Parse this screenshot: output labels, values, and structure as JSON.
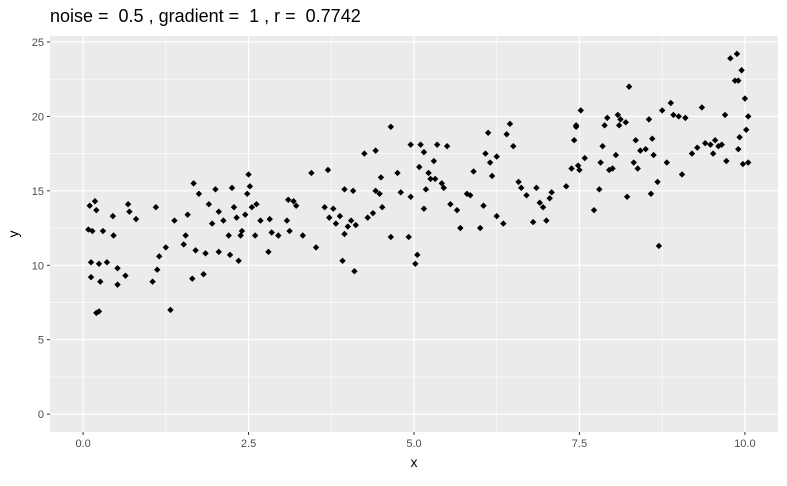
{
  "chart_data": {
    "type": "scatter",
    "title": "noise =  0.5 , gradient =  1 , r =  0.7742",
    "xlabel": "x",
    "ylabel": "y",
    "xlim": [
      -0.5,
      10.5
    ],
    "ylim": [
      -1.2,
      25.4
    ],
    "x_ticks": [
      0.0,
      2.5,
      5.0,
      7.5,
      10.0
    ],
    "x_tick_labels": [
      "0.0",
      "2.5",
      "5.0",
      "7.5",
      "10.0"
    ],
    "y_ticks": [
      0,
      5,
      10,
      15,
      20,
      25
    ],
    "y_tick_labels": [
      "0",
      "5",
      "10",
      "15",
      "20",
      "25"
    ],
    "grid": true,
    "panel_color": "#ebebeb",
    "grid_color": "#ffffff",
    "point_color": "#000000",
    "points": [
      [
        0.08,
        12.4
      ],
      [
        0.1,
        14.0
      ],
      [
        0.12,
        10.2
      ],
      [
        0.12,
        9.2
      ],
      [
        0.14,
        12.3
      ],
      [
        0.18,
        14.3
      ],
      [
        0.2,
        13.7
      ],
      [
        0.2,
        6.8
      ],
      [
        0.24,
        6.9
      ],
      [
        0.24,
        10.1
      ],
      [
        0.26,
        8.9
      ],
      [
        0.3,
        12.3
      ],
      [
        0.36,
        10.2
      ],
      [
        0.45,
        13.3
      ],
      [
        0.46,
        12.0
      ],
      [
        0.52,
        9.8
      ],
      [
        0.52,
        8.7
      ],
      [
        0.64,
        9.3
      ],
      [
        0.68,
        14.1
      ],
      [
        0.7,
        13.6
      ],
      [
        0.8,
        13.1
      ],
      [
        1.05,
        8.9
      ],
      [
        1.1,
        13.9
      ],
      [
        1.12,
        9.7
      ],
      [
        1.15,
        10.6
      ],
      [
        1.25,
        11.2
      ],
      [
        1.32,
        7.0
      ],
      [
        1.38,
        13.0
      ],
      [
        1.52,
        11.4
      ],
      [
        1.55,
        12.0
      ],
      [
        1.58,
        13.4
      ],
      [
        1.65,
        9.1
      ],
      [
        1.67,
        15.5
      ],
      [
        1.7,
        11.0
      ],
      [
        1.75,
        14.8
      ],
      [
        1.82,
        9.4
      ],
      [
        1.85,
        10.8
      ],
      [
        1.9,
        14.1
      ],
      [
        1.95,
        12.8
      ],
      [
        2.0,
        15.1
      ],
      [
        2.05,
        13.6
      ],
      [
        2.05,
        10.9
      ],
      [
        2.12,
        13.0
      ],
      [
        2.2,
        12.0
      ],
      [
        2.22,
        10.7
      ],
      [
        2.25,
        15.2
      ],
      [
        2.28,
        13.9
      ],
      [
        2.32,
        13.2
      ],
      [
        2.35,
        10.3
      ],
      [
        2.38,
        12.0
      ],
      [
        2.4,
        12.3
      ],
      [
        2.45,
        13.4
      ],
      [
        2.48,
        14.8
      ],
      [
        2.5,
        16.1
      ],
      [
        2.52,
        15.3
      ],
      [
        2.55,
        13.9
      ],
      [
        2.6,
        12.0
      ],
      [
        2.62,
        14.1
      ],
      [
        2.68,
        13.0
      ],
      [
        2.8,
        10.9
      ],
      [
        2.82,
        13.1
      ],
      [
        2.85,
        12.2
      ],
      [
        2.95,
        12.0
      ],
      [
        3.08,
        13.0
      ],
      [
        3.1,
        14.4
      ],
      [
        3.12,
        12.3
      ],
      [
        3.18,
        14.3
      ],
      [
        3.22,
        14.0
      ],
      [
        3.32,
        12.0
      ],
      [
        3.45,
        16.2
      ],
      [
        3.52,
        11.2
      ],
      [
        3.65,
        13.9
      ],
      [
        3.7,
        16.4
      ],
      [
        3.72,
        13.2
      ],
      [
        3.78,
        13.8
      ],
      [
        3.82,
        12.8
      ],
      [
        3.88,
        13.3
      ],
      [
        3.92,
        10.3
      ],
      [
        3.95,
        15.1
      ],
      [
        3.95,
        12.1
      ],
      [
        4.0,
        12.6
      ],
      [
        4.05,
        13.0
      ],
      [
        4.08,
        15.0
      ],
      [
        4.1,
        9.6
      ],
      [
        4.12,
        12.7
      ],
      [
        4.25,
        17.5
      ],
      [
        4.3,
        13.2
      ],
      [
        4.38,
        13.5
      ],
      [
        4.42,
        17.7
      ],
      [
        4.42,
        15.0
      ],
      [
        4.48,
        14.8
      ],
      [
        4.5,
        15.9
      ],
      [
        4.52,
        13.9
      ],
      [
        4.65,
        19.3
      ],
      [
        4.65,
        11.9
      ],
      [
        4.75,
        16.2
      ],
      [
        4.8,
        14.9
      ],
      [
        4.92,
        11.9
      ],
      [
        4.95,
        18.1
      ],
      [
        4.95,
        14.6
      ],
      [
        5.02,
        10.1
      ],
      [
        5.05,
        10.7
      ],
      [
        5.08,
        16.6
      ],
      [
        5.1,
        18.1
      ],
      [
        5.15,
        17.6
      ],
      [
        5.15,
        13.8
      ],
      [
        5.18,
        15.1
      ],
      [
        5.22,
        16.2
      ],
      [
        5.25,
        15.8
      ],
      [
        5.3,
        17.0
      ],
      [
        5.32,
        15.8
      ],
      [
        5.35,
        18.1
      ],
      [
        5.42,
        15.5
      ],
      [
        5.45,
        15.2
      ],
      [
        5.5,
        18.0
      ],
      [
        5.55,
        14.1
      ],
      [
        5.65,
        13.7
      ],
      [
        5.7,
        12.5
      ],
      [
        5.8,
        14.8
      ],
      [
        5.85,
        14.7
      ],
      [
        5.9,
        16.3
      ],
      [
        6.0,
        12.5
      ],
      [
        6.05,
        14.0
      ],
      [
        6.08,
        17.5
      ],
      [
        6.12,
        18.9
      ],
      [
        6.15,
        16.9
      ],
      [
        6.18,
        16.0
      ],
      [
        6.25,
        17.3
      ],
      [
        6.25,
        13.3
      ],
      [
        6.35,
        12.8
      ],
      [
        6.4,
        18.8
      ],
      [
        6.45,
        19.5
      ],
      [
        6.5,
        18.0
      ],
      [
        6.58,
        15.6
      ],
      [
        6.62,
        15.2
      ],
      [
        6.7,
        14.7
      ],
      [
        6.8,
        12.9
      ],
      [
        6.85,
        15.2
      ],
      [
        6.9,
        14.2
      ],
      [
        6.95,
        13.9
      ],
      [
        7.0,
        13.0
      ],
      [
        7.05,
        14.5
      ],
      [
        7.08,
        14.9
      ],
      [
        7.3,
        15.3
      ],
      [
        7.38,
        16.5
      ],
      [
        7.42,
        18.4
      ],
      [
        7.45,
        19.4
      ],
      [
        7.45,
        19.3
      ],
      [
        7.48,
        16.7
      ],
      [
        7.5,
        16.4
      ],
      [
        7.52,
        20.4
      ],
      [
        7.58,
        17.2
      ],
      [
        7.72,
        13.7
      ],
      [
        7.8,
        15.1
      ],
      [
        7.82,
        16.9
      ],
      [
        7.85,
        18.0
      ],
      [
        7.88,
        19.4
      ],
      [
        7.92,
        19.9
      ],
      [
        7.95,
        16.4
      ],
      [
        8.0,
        16.5
      ],
      [
        8.05,
        17.4
      ],
      [
        8.08,
        20.1
      ],
      [
        8.1,
        19.4
      ],
      [
        8.12,
        19.8
      ],
      [
        8.2,
        19.6
      ],
      [
        8.25,
        22.0
      ],
      [
        8.22,
        14.6
      ],
      [
        8.32,
        16.9
      ],
      [
        8.35,
        18.4
      ],
      [
        8.38,
        16.5
      ],
      [
        8.42,
        17.7
      ],
      [
        8.5,
        17.8
      ],
      [
        8.55,
        19.8
      ],
      [
        8.58,
        14.8
      ],
      [
        8.6,
        18.5
      ],
      [
        8.62,
        17.4
      ],
      [
        8.68,
        15.6
      ],
      [
        8.7,
        11.3
      ],
      [
        8.75,
        20.4
      ],
      [
        8.82,
        16.9
      ],
      [
        8.88,
        20.9
      ],
      [
        8.92,
        20.1
      ],
      [
        9.0,
        20.0
      ],
      [
        9.05,
        16.1
      ],
      [
        9.1,
        19.9
      ],
      [
        9.2,
        17.5
      ],
      [
        9.28,
        17.9
      ],
      [
        9.35,
        20.6
      ],
      [
        9.4,
        18.2
      ],
      [
        9.48,
        18.1
      ],
      [
        9.52,
        17.5
      ],
      [
        9.55,
        18.4
      ],
      [
        9.6,
        18.0
      ],
      [
        9.65,
        18.1
      ],
      [
        9.7,
        20.1
      ],
      [
        9.72,
        17.0
      ],
      [
        9.78,
        23.9
      ],
      [
        9.85,
        22.4
      ],
      [
        9.88,
        24.2
      ],
      [
        9.9,
        22.4
      ],
      [
        9.9,
        17.8
      ],
      [
        9.92,
        18.6
      ],
      [
        9.95,
        23.1
      ],
      [
        9.97,
        16.8
      ],
      [
        10.0,
        21.2
      ],
      [
        10.02,
        19.1
      ],
      [
        10.05,
        20.0
      ],
      [
        10.05,
        16.9
      ]
    ]
  }
}
